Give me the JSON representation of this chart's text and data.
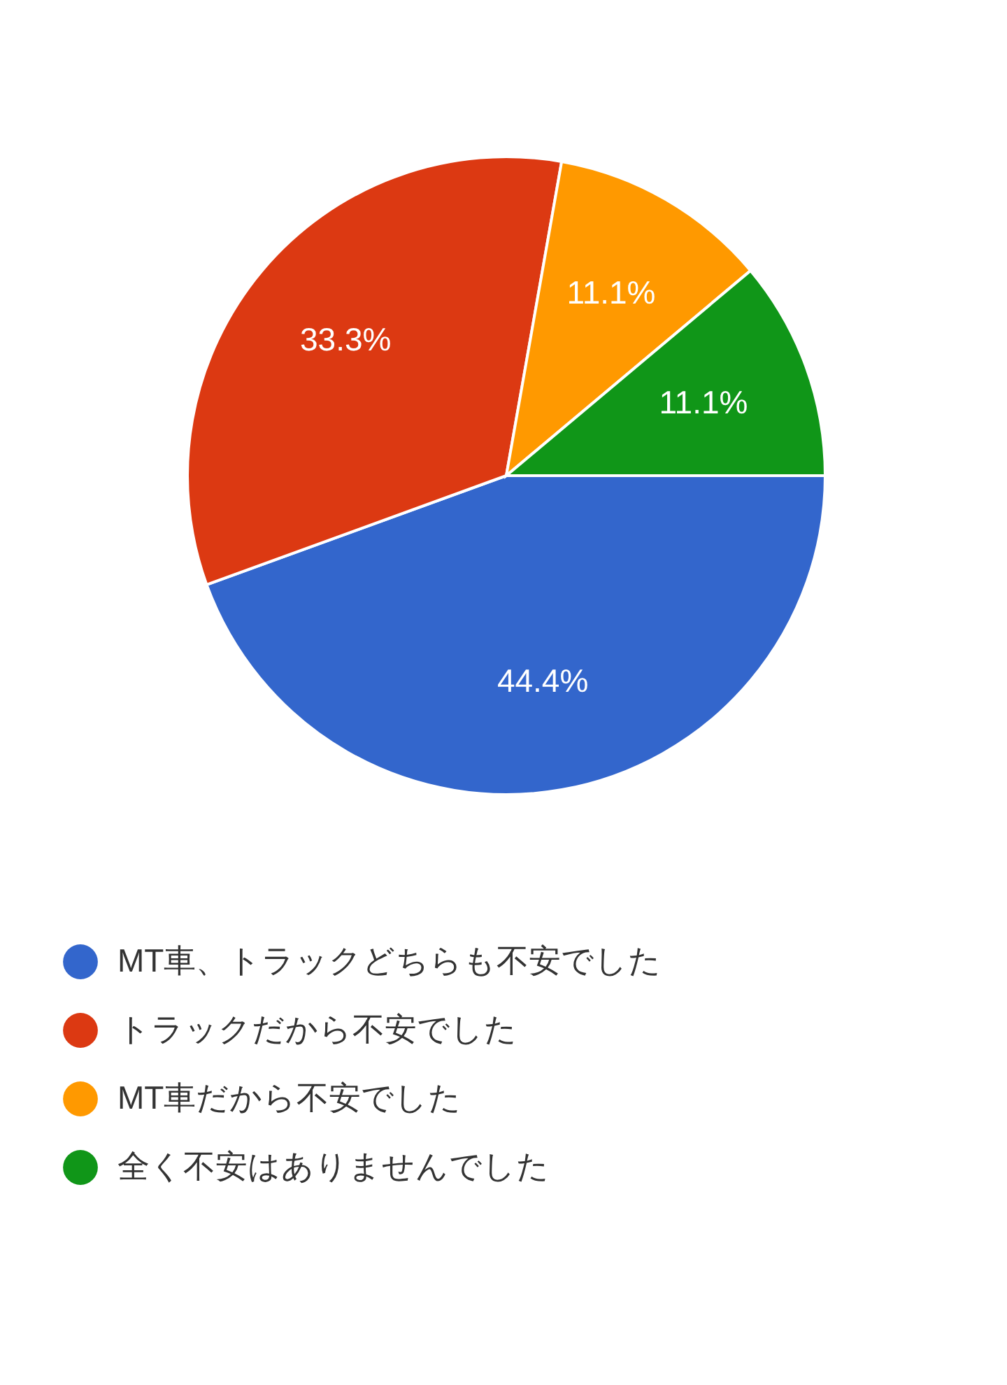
{
  "chart_data": {
    "type": "pie",
    "categories": [
      "MT車、トラックどちらも不安でした",
      "トラックだから不安でした",
      "MT車だから不安でした",
      "全く不安はありませんでした"
    ],
    "values": [
      44.4,
      33.3,
      11.1,
      11.1
    ],
    "colors": [
      "#3366cc",
      "#dc3912",
      "#ff9900",
      "#109618"
    ],
    "value_labels": [
      "44.4%",
      "33.3%",
      "11.1%",
      "11.1%"
    ],
    "legend": "bottom"
  }
}
